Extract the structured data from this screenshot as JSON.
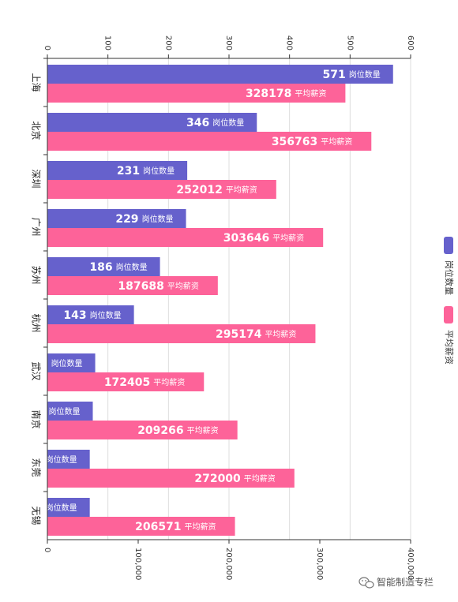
{
  "chart_data": {
    "type": "bar",
    "orientation": "horizontal",
    "categories": [
      "上海",
      "北京",
      "深圳",
      "广州",
      "苏州",
      "杭州",
      "武汉",
      "南京",
      "东莞",
      "无锡"
    ],
    "series": [
      {
        "name": "岗位数量",
        "axis": "top",
        "color": "#6661cc",
        "values": [
          571,
          346,
          231,
          229,
          186,
          143,
          79,
          75,
          70,
          70
        ]
      },
      {
        "name": "平均薪资",
        "axis": "bottom",
        "color": "#fd6399",
        "values": [
          328178,
          356763,
          252012,
          303646,
          187688,
          295174,
          172405,
          209266,
          272000,
          206571
        ]
      }
    ],
    "top_axis": {
      "range": [
        0,
        600
      ],
      "ticks": [
        "0",
        "100",
        "200",
        "300",
        "400",
        "500",
        "600"
      ]
    },
    "bottom_axis": {
      "range": [
        0,
        400000
      ],
      "ticks": [
        "0",
        "100,000",
        "200,000",
        "300,000",
        "400,000"
      ]
    },
    "grid": true,
    "legend": {
      "position": "right",
      "entries": [
        "岗位数量",
        "平均薪资"
      ]
    }
  },
  "watermark": {
    "text": "智能制造专栏",
    "icon": "wechat-icon"
  }
}
